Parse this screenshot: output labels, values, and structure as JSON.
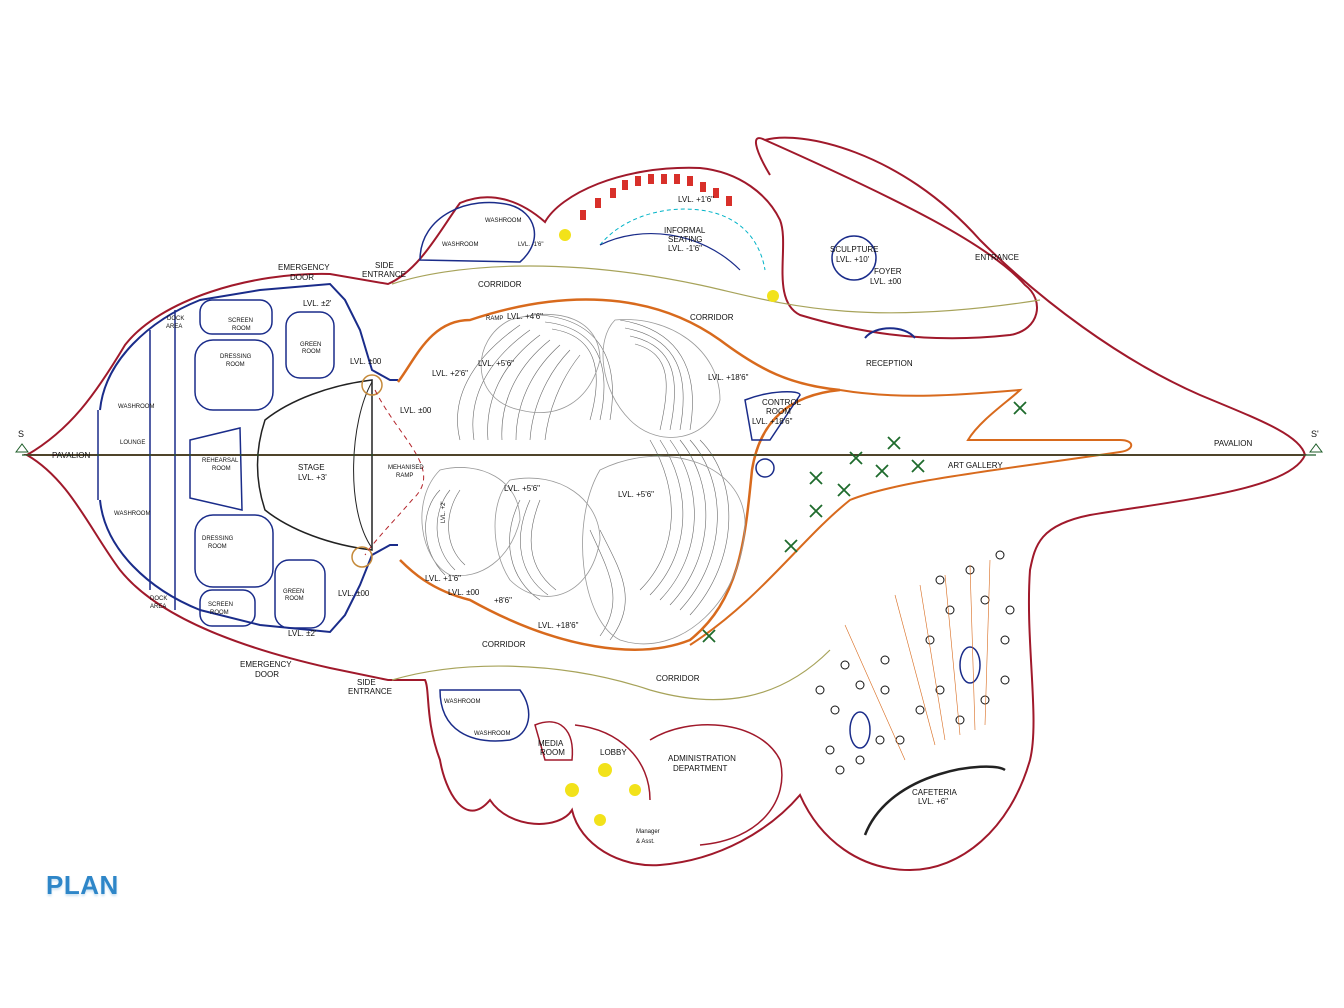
{
  "title": "PLAN",
  "section_marks": {
    "left": "S",
    "right": "S'"
  },
  "colors": {
    "outer_wall": "#a0192b",
    "inner_wall": "#1a2c8a",
    "orange_wall": "#d86a1d",
    "section_line": "#1f5e2a",
    "guide_line": "#a7a35a",
    "seat_red": "#d8302a",
    "accent_yellow": "#f2e21a",
    "art_cross": "#1e6b2c",
    "title_blue": "#2e86c8"
  },
  "labels": {
    "pavalion_left": "PAVALION",
    "pavalion_right": "PAVALION",
    "emergency_door_top": "EMERGENCY",
    "emergency_door_top_2": "DOOR",
    "emergency_door_bottom": "EMERGENCY",
    "emergency_door_bottom_2": "DOOR",
    "side_entrance_top": "SIDE",
    "side_entrance_top_2": "ENTRANCE",
    "side_entrance_bottom": "SIDE",
    "side_entrance_bottom_2": "ENTRANCE",
    "dock_area_top": "DOCK",
    "dock_area_top_2": "AREA",
    "dock_area_bottom": "DOCK",
    "dock_area_bottom_2": "AREA",
    "screen_room_top": "SCREEN",
    "screen_room_top_2": "ROOM",
    "screen_room_bottom": "SCREEN",
    "screen_room_bottom_2": "ROOM",
    "dressing_room_top": "DRESSING",
    "dressing_room_top_2": "ROOM",
    "dressing_room_bottom": "DRESSING",
    "dressing_room_bottom_2": "ROOM",
    "green_room_top": "GREEN",
    "green_room_top_2": "ROOM",
    "green_room_bottom": "GREEN",
    "green_room_bottom_2": "ROOM",
    "washroom_left_top": "WASHROOM",
    "washroom_left_bottom": "WASHROOM",
    "lounge": "LOUNGE",
    "rehearsal_room": "REHEARSAL",
    "rehearsal_room_2": "ROOM",
    "stage": "STAGE",
    "stage_lvl": "LVL. +3'",
    "mechanised_ramp": "MEHANISED",
    "mechanised_ramp_2": "RAMP",
    "lvl_plus2_top": "LVL. ±2'",
    "lvl_plus2_bottom": "LVL. ±2'",
    "lvl_00_top": "LVL. ±00",
    "lvl_00_bottom": "LVL. ±00",
    "lvl_00_mid": "LVL. ±00",
    "corridor_top_left": "CORRIDOR",
    "corridor_top_right": "CORRIDOR",
    "corridor_bottom_left": "CORRIDOR",
    "corridor_bottom_right": "CORRIDOR",
    "washroom_top_1": "WASHROOM",
    "washroom_top_2": "WASHROOM",
    "washroom_bottom_1": "WASHROOM",
    "washroom_bottom_2": "WASHROOM",
    "lvl_1_6_top": "LVL. +1'6\"",
    "lvl_1_6_small": "LVL. -1'6\"",
    "informal_seating": "INFORMAL",
    "informal_seating_2": "SEATING",
    "informal_lvl": "LVL. -1'6\"",
    "sculpture": "SCULPTURE",
    "sculpture_lvl": "LVL. +10'",
    "foyer": "FOYER",
    "foyer_lvl": "LVL. ±00",
    "entrance": "ENTRANCE",
    "reception": "RECEPTION",
    "ramp": "RAMP",
    "lvl_4_6_top": "LVL. +4'6\"",
    "lvl_2_6": "LVL. +2'6\"",
    "lvl_5_6_upper": "LVL. +5'6\"",
    "lvl_18_6_top": "LVL. +18'6\"",
    "control_room": "CONTROL",
    "control_room_2": "ROOM",
    "control_room_lvl": "LVL. +18'6\"",
    "lvl_5_6_mid": "LVL. +5'6\"",
    "lvl_5_6_right": "LVL. +5'6\"",
    "lvl_2_vert": "LVL. +2'",
    "lvl_1_6_low": "LVL. +1'6\"",
    "lvl_00_low": "LVL. ±00",
    "lvl_6_6": "+8'6\"",
    "lvl_18_6_bottom": "LVL. +18'6\"",
    "art_gallery": "ART GALLERY",
    "media_room": "MEDIA",
    "media_room_2": "ROOM",
    "lobby": "LOBBY",
    "admin": "ADMINISTRATION",
    "admin_2": "DEPARTMENT",
    "manager": "Manager",
    "manager_2": "& Asst.",
    "cafeteria": "CAFETERIA",
    "cafeteria_lvl": "LVL. +6\""
  }
}
